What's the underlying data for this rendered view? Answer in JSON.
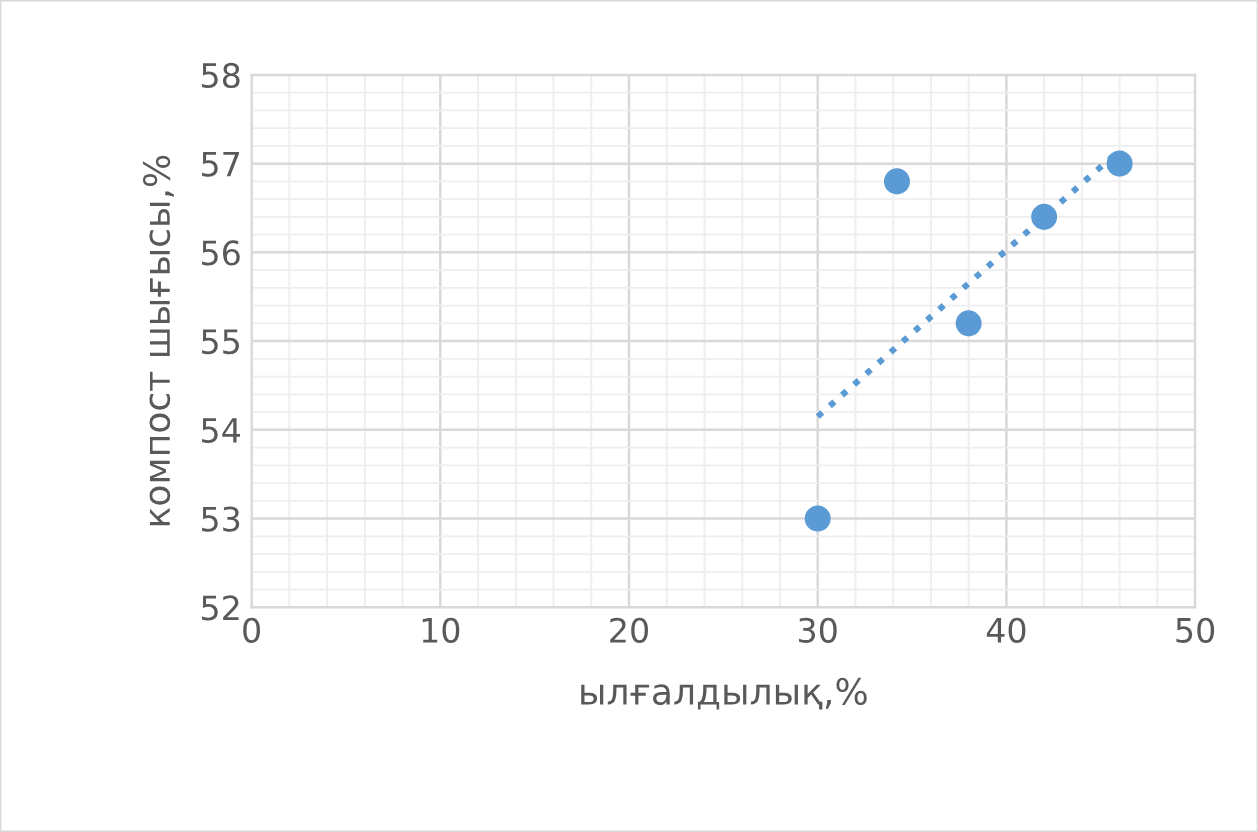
{
  "chart_data": {
    "type": "scatter",
    "xlabel": "ылғалдылық,%",
    "ylabel": "компост шығысы,%",
    "xlim": [
      0,
      50
    ],
    "xticks": [
      0,
      10,
      20,
      30,
      40,
      50
    ],
    "ylim": [
      52,
      58
    ],
    "yticks": [
      52,
      53,
      54,
      55,
      56,
      57,
      58
    ],
    "grid": true,
    "marker": "circle",
    "series": [
      {
        "color": "#5b9bd5",
        "x": [
          30,
          34.2,
          38,
          42,
          46
        ],
        "values": [
          53,
          56.8,
          55.2,
          56.4,
          57
        ]
      },
      {
        "type": "line",
        "color": "#5b9bd5",
        "line_style": "dotted",
        "marker": "none",
        "x": [
          30,
          46
        ],
        "values": [
          54.15,
          57.15
        ]
      }
    ]
  }
}
